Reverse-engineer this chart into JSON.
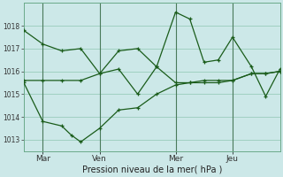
{
  "xlabel": "Pression niveau de la mer( hPa )",
  "bg_color": "#cce8e8",
  "grid_color": "#99ccbb",
  "line_color": "#1a5c1a",
  "vline_color": "#4a7a5a",
  "ylim": [
    1012.5,
    1019.0
  ],
  "xlim": [
    0,
    108
  ],
  "yticks": [
    1013,
    1014,
    1015,
    1016,
    1017,
    1018
  ],
  "xtick_positions": [
    8,
    32,
    64,
    88
  ],
  "xtick_labels": [
    "Mar",
    "Ven",
    "Mer",
    "Jeu"
  ],
  "vline_positions": [
    8,
    32,
    64,
    88
  ],
  "s1_x": [
    0,
    8,
    16,
    24,
    32,
    40,
    48,
    56,
    64,
    70,
    76,
    82,
    88,
    96,
    102,
    108
  ],
  "s1_y": [
    1017.8,
    1017.2,
    1016.9,
    1017.0,
    1015.9,
    1016.9,
    1017.0,
    1016.2,
    1018.6,
    1018.3,
    1016.4,
    1016.5,
    1017.5,
    1016.2,
    1014.9,
    1016.1
  ],
  "s2_x": [
    0,
    8,
    16,
    24,
    32,
    40,
    48,
    56,
    64,
    70,
    76,
    82,
    88,
    96,
    102,
    108
  ],
  "s2_y": [
    1015.6,
    1015.6,
    1015.6,
    1015.6,
    1015.9,
    1016.1,
    1015.0,
    1016.2,
    1015.5,
    1015.5,
    1015.6,
    1015.6,
    1015.6,
    1015.9,
    1015.9,
    1016.0
  ],
  "s3_x": [
    0,
    8,
    16,
    20,
    24,
    32,
    40,
    48,
    56,
    64,
    70,
    76,
    82,
    88,
    96,
    102,
    108
  ],
  "s3_y": [
    1015.5,
    1013.8,
    1013.6,
    1013.2,
    1012.9,
    1013.5,
    1014.3,
    1014.4,
    1015.0,
    1015.4,
    1015.5,
    1015.5,
    1015.5,
    1015.6,
    1015.9,
    1015.9,
    1016.0
  ],
  "figsize": [
    3.2,
    2.0
  ],
  "dpi": 100
}
